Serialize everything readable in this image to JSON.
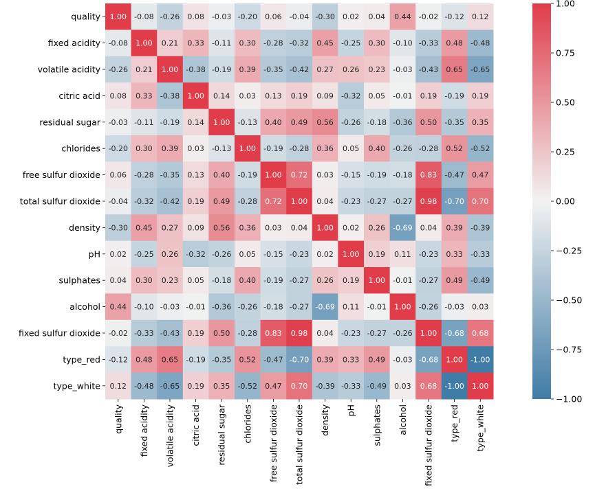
{
  "chart_data": {
    "type": "heatmap",
    "title": "",
    "labels": [
      "quality",
      "fixed acidity",
      "volatile acidity",
      "citric acid",
      "residual sugar",
      "chlorides",
      "free sulfur dioxide",
      "total sulfur dioxide",
      "density",
      "pH",
      "sulphates",
      "alcohol",
      "fixed sulfur dioxide",
      "type_red",
      "type_white"
    ],
    "values": [
      [
        1.0,
        -0.08,
        -0.26,
        0.08,
        -0.03,
        -0.2,
        0.06,
        -0.04,
        -0.3,
        0.02,
        0.04,
        0.44,
        -0.02,
        -0.12,
        0.12
      ],
      [
        -0.08,
        1.0,
        0.21,
        0.33,
        -0.11,
        0.3,
        -0.28,
        -0.32,
        0.45,
        -0.25,
        0.3,
        -0.1,
        -0.33,
        0.48,
        -0.48
      ],
      [
        -0.26,
        0.21,
        1.0,
        -0.38,
        -0.19,
        0.39,
        -0.35,
        -0.42,
        0.27,
        0.26,
        0.23,
        -0.03,
        -0.43,
        0.65,
        -0.65
      ],
      [
        0.08,
        0.33,
        -0.38,
        1.0,
        0.14,
        0.03,
        0.13,
        0.19,
        0.09,
        -0.32,
        0.05,
        -0.01,
        0.19,
        -0.19,
        0.19
      ],
      [
        -0.03,
        -0.11,
        -0.19,
        0.14,
        1.0,
        -0.13,
        0.4,
        0.49,
        0.56,
        -0.26,
        -0.18,
        -0.36,
        0.5,
        -0.35,
        0.35
      ],
      [
        -0.2,
        0.3,
        0.39,
        0.03,
        -0.13,
        1.0,
        -0.19,
        -0.28,
        0.36,
        0.05,
        0.4,
        -0.26,
        -0.28,
        0.52,
        -0.52
      ],
      [
        0.06,
        -0.28,
        -0.35,
        0.13,
        0.4,
        -0.19,
        1.0,
        0.72,
        0.03,
        -0.15,
        -0.19,
        -0.18,
        0.83,
        -0.47,
        0.47
      ],
      [
        -0.04,
        -0.32,
        -0.42,
        0.19,
        0.49,
        -0.28,
        0.72,
        1.0,
        0.04,
        -0.23,
        -0.27,
        -0.27,
        0.98,
        -0.7,
        0.7
      ],
      [
        -0.3,
        0.45,
        0.27,
        0.09,
        0.56,
        0.36,
        0.03,
        0.04,
        1.0,
        0.02,
        0.26,
        -0.69,
        0.04,
        0.39,
        -0.39
      ],
      [
        0.02,
        -0.25,
        0.26,
        -0.32,
        -0.26,
        0.05,
        -0.15,
        -0.23,
        0.02,
        1.0,
        0.19,
        0.11,
        -0.23,
        0.33,
        -0.33
      ],
      [
        0.04,
        0.3,
        0.23,
        0.05,
        -0.18,
        0.4,
        -0.19,
        -0.27,
        0.26,
        0.19,
        1.0,
        -0.01,
        -0.27,
        0.49,
        -0.49
      ],
      [
        0.44,
        -0.1,
        -0.03,
        -0.01,
        -0.36,
        -0.26,
        -0.18,
        -0.27,
        -0.69,
        0.11,
        -0.01,
        1.0,
        -0.26,
        -0.03,
        0.03
      ],
      [
        -0.02,
        -0.33,
        -0.43,
        0.19,
        0.5,
        -0.28,
        0.83,
        0.98,
        0.04,
        -0.23,
        -0.27,
        -0.26,
        1.0,
        -0.68,
        0.68
      ],
      [
        -0.12,
        0.48,
        0.65,
        -0.19,
        -0.35,
        0.52,
        -0.47,
        -0.7,
        0.39,
        0.33,
        0.49,
        -0.03,
        -0.68,
        1.0,
        -1.0
      ],
      [
        0.12,
        -0.48,
        -0.65,
        0.19,
        0.35,
        -0.52,
        0.47,
        0.7,
        -0.39,
        -0.33,
        -0.49,
        0.03,
        0.68,
        -1.0,
        1.0
      ]
    ],
    "value_range": [
      -1.0,
      1.0
    ],
    "colorbar_ticks": [
      1.0,
      0.75,
      0.5,
      0.25,
      0.0,
      -0.25,
      -0.5,
      -0.75,
      -1.0
    ],
    "colorbar_tick_labels": [
      "1.00",
      "0.75",
      "0.50",
      "0.25",
      "0.00",
      "−0.25",
      "−0.50",
      "−0.75",
      "−1.00"
    ],
    "colormap": {
      "negative": "#3f7ca6",
      "center": "#f2f2f2",
      "positive": "#e03c4a"
    }
  }
}
